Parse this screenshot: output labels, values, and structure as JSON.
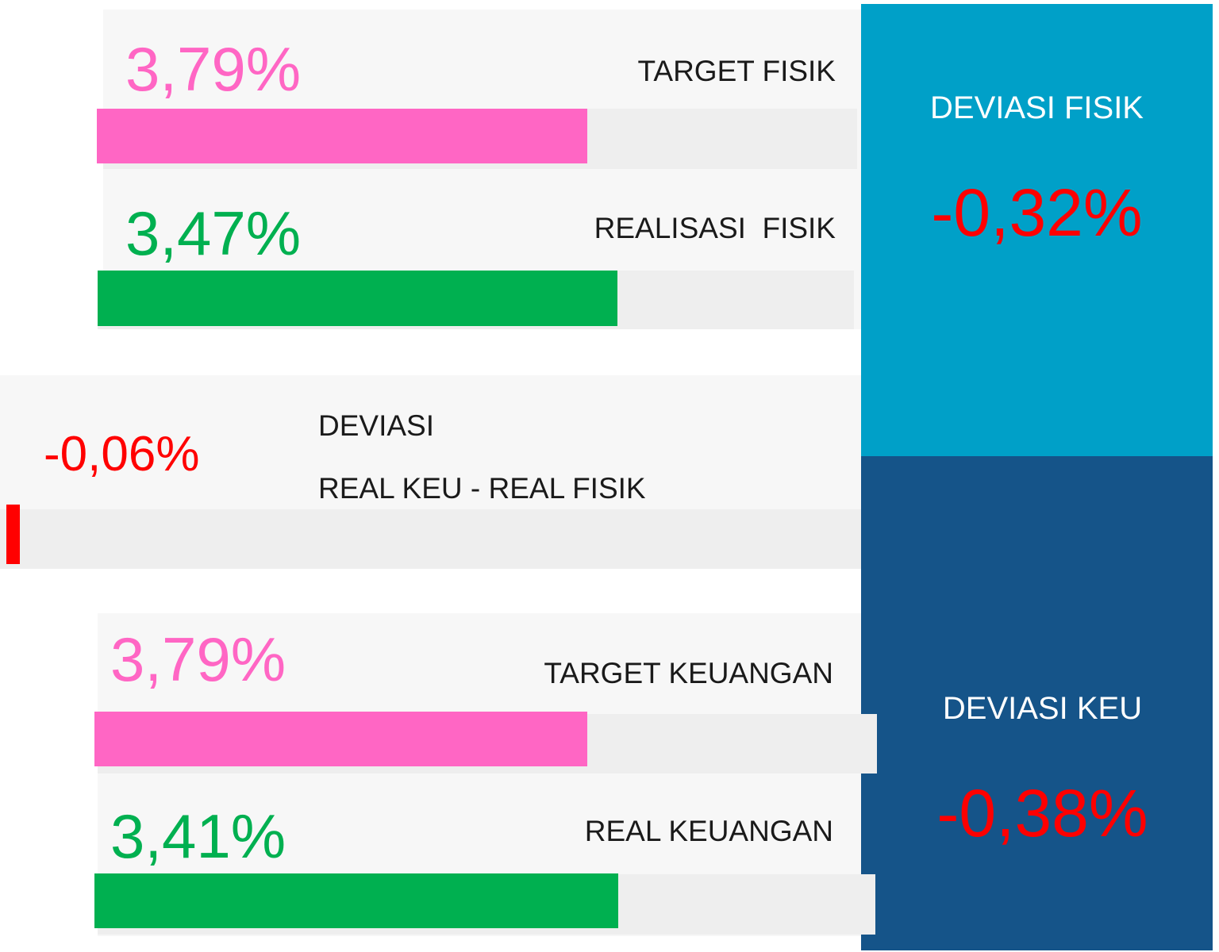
{
  "fisik": {
    "target": {
      "label": "TARGET FISIK",
      "value": "3,79%"
    },
    "realisasi": {
      "label": "REALISASI  FISIK",
      "value": "3,47%"
    }
  },
  "deviasi": {
    "label": "DEVIASI",
    "sublabel": "REAL KEU - REAL FISIK",
    "value": "-0,06%"
  },
  "keuangan": {
    "target": {
      "label": "TARGET KEUANGAN",
      "value": "3,79%"
    },
    "real": {
      "label": "REAL KEUANGAN",
      "value": "3,41%"
    }
  },
  "deviasi_fisik": {
    "label": "DEVIASI FISIK",
    "value": "-0,32%"
  },
  "deviasi_keu": {
    "label": "DEVIASI KEU",
    "value": "-0,38%"
  }
}
